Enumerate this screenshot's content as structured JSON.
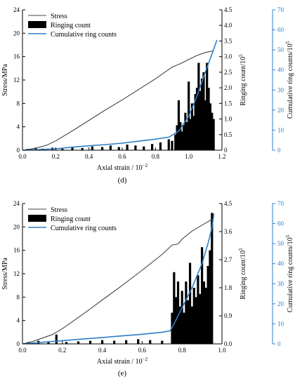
{
  "chart_data": [
    {
      "type": "line",
      "panel_label": "(d)",
      "xlabel": "Axial strain / 10",
      "xlabel_exp": "−2",
      "xlim": [
        0.0,
        1.2
      ],
      "x_ticks": [
        "0.0",
        "0.2",
        "0.4",
        "0.6",
        "0.8",
        "1.0",
        "1.2"
      ],
      "left_axis": {
        "label": "Stress/MPa",
        "lim": [
          0,
          24
        ],
        "ticks": [
          "0",
          "4",
          "8",
          "12",
          "16",
          "20",
          "24"
        ]
      },
      "right_axis_1": {
        "label": "Ringing count/10",
        "label_exp": "5",
        "lim": [
          0,
          4.5
        ],
        "ticks": [
          "0",
          "0.5",
          "1.0",
          "1.5",
          "2.0",
          "2.5",
          "3.0",
          "3.5",
          "4.0",
          "4.5"
        ]
      },
      "right_axis_2": {
        "label": "Cumulative ring counts/10",
        "label_exp": "5",
        "lim": [
          0,
          70
        ],
        "ticks": [
          "0",
          "10",
          "20",
          "30",
          "40",
          "50",
          "60",
          "70"
        ],
        "color": "#2e7ec7"
      },
      "legend": {
        "position": "top-left",
        "entries": [
          "Stress",
          "Ringing count",
          "Cumulative ring counts"
        ]
      },
      "series": [
        {
          "name": "Stress",
          "axis": "left",
          "color": "#444444",
          "x": [
            0.0,
            0.05,
            0.1,
            0.15,
            0.2,
            0.3,
            0.4,
            0.5,
            0.6,
            0.7,
            0.8,
            0.9,
            0.95,
            1.0,
            1.05,
            1.1,
            1.15
          ],
          "y": [
            0.0,
            0.2,
            0.5,
            0.9,
            1.6,
            3.3,
            5.1,
            6.9,
            8.6,
            10.4,
            12.2,
            14.2,
            14.8,
            15.5,
            16.2,
            16.7,
            17.0
          ]
        },
        {
          "name": "Cumulative ring counts",
          "axis": "right_2",
          "color": "#2e7ec7",
          "x": [
            0.0,
            0.1,
            0.2,
            0.3,
            0.4,
            0.5,
            0.6,
            0.7,
            0.8,
            0.88,
            0.94,
            1.0,
            1.05,
            1.1,
            1.14,
            1.17
          ],
          "y": [
            0.0,
            0.3,
            0.7,
            1.5,
            2.2,
            2.8,
            3.5,
            4.5,
            5.5,
            6.5,
            9.5,
            17.0,
            27.0,
            39.0,
            48.0,
            55.0
          ]
        },
        {
          "name": "Ringing count",
          "axis": "right_1",
          "type": "bar",
          "color": "#000000",
          "x": [
            0.03,
            0.08,
            0.12,
            0.18,
            0.24,
            0.3,
            0.36,
            0.42,
            0.48,
            0.53,
            0.58,
            0.63,
            0.68,
            0.73,
            0.78,
            0.83,
            0.88,
            0.9,
            0.92,
            0.93,
            0.94,
            0.95,
            0.96,
            0.97,
            0.98,
            0.99,
            1.0,
            1.01,
            1.02,
            1.03,
            1.04,
            1.05,
            1.06,
            1.07,
            1.08,
            1.09,
            1.1,
            1.11,
            1.12,
            1.13,
            1.14,
            1.15
          ],
          "y": [
            0.04,
            0.06,
            0.05,
            0.08,
            0.05,
            0.1,
            0.07,
            0.12,
            0.1,
            0.15,
            0.1,
            0.18,
            0.15,
            0.12,
            0.2,
            0.25,
            0.35,
            0.3,
            0.5,
            0.8,
            1.6,
            0.9,
            0.6,
            0.8,
            1.2,
            0.9,
            2.2,
            1.0,
            1.5,
            1.1,
            1.8,
            2.0,
            2.8,
            1.9,
            2.3,
            2.5,
            1.6,
            2.8,
            2.0,
            1.5,
            1.2,
            1.0
          ]
        }
      ]
    },
    {
      "type": "line",
      "panel_label": "(e)",
      "xlabel": "Axial strain / 10",
      "xlabel_exp": "−2",
      "xlim": [
        0.0,
        1.0
      ],
      "x_ticks": [
        "0.0",
        "0.2",
        "0.4",
        "0.6",
        "0.8",
        "1.0"
      ],
      "left_axis": {
        "label": "Stress/MPa",
        "lim": [
          0,
          24
        ],
        "ticks": [
          "0",
          "4",
          "8",
          "12",
          "16",
          "20",
          "24"
        ]
      },
      "right_axis_1": {
        "label": "Ringing count/10",
        "label_exp": "5",
        "lim": [
          0,
          4.5
        ],
        "ticks": [
          "0.0",
          "0.9",
          "1.8",
          "2.7",
          "3.6",
          "4.5"
        ]
      },
      "right_axis_2": {
        "label": "Cumulative ring counts/10",
        "label_exp": "5",
        "lim": [
          0,
          70
        ],
        "ticks": [
          "0",
          "10",
          "20",
          "30",
          "40",
          "50",
          "60",
          "70"
        ],
        "color": "#2e7ec7"
      },
      "legend": {
        "position": "top-left",
        "entries": [
          "Stress",
          "Ringing count",
          "Cumulative ring counts"
        ]
      },
      "series": [
        {
          "name": "Stress",
          "axis": "left",
          "color": "#444444",
          "x": [
            0.0,
            0.05,
            0.1,
            0.15,
            0.2,
            0.3,
            0.4,
            0.5,
            0.6,
            0.7,
            0.75,
            0.78,
            0.8,
            0.85,
            0.9,
            0.95
          ],
          "y": [
            0.0,
            0.4,
            1.0,
            1.6,
            2.6,
            5.0,
            7.5,
            10.0,
            12.6,
            15.3,
            16.9,
            17.1,
            17.9,
            19.3,
            20.3,
            21.3
          ]
        },
        {
          "name": "Cumulative ring counts",
          "axis": "right_2",
          "color": "#2e7ec7",
          "x": [
            0.0,
            0.1,
            0.2,
            0.3,
            0.4,
            0.5,
            0.6,
            0.7,
            0.74,
            0.76,
            0.8,
            0.85,
            0.9,
            0.93,
            0.95,
            0.96
          ],
          "y": [
            0.0,
            0.8,
            1.6,
            2.4,
            3.2,
            4.0,
            4.8,
            5.8,
            6.5,
            10.0,
            18.0,
            28.0,
            40.0,
            50.0,
            58.0,
            65.0
          ]
        },
        {
          "name": "Ringing count",
          "axis": "right_1",
          "type": "bar",
          "color": "#000000",
          "x": [
            0.03,
            0.08,
            0.13,
            0.17,
            0.22,
            0.28,
            0.34,
            0.4,
            0.46,
            0.52,
            0.58,
            0.64,
            0.7,
            0.75,
            0.76,
            0.77,
            0.78,
            0.79,
            0.8,
            0.81,
            0.82,
            0.83,
            0.84,
            0.85,
            0.86,
            0.87,
            0.88,
            0.89,
            0.9,
            0.91,
            0.92,
            0.93,
            0.94,
            0.95
          ],
          "y": [
            0.06,
            0.1,
            0.08,
            0.3,
            0.06,
            0.08,
            0.1,
            0.12,
            0.1,
            0.12,
            0.15,
            0.12,
            0.1,
            1.0,
            2.3,
            1.5,
            2.0,
            1.2,
            1.7,
            1.0,
            2.0,
            1.4,
            2.6,
            1.2,
            1.8,
            1.5,
            2.2,
            1.6,
            3.1,
            2.0,
            1.8,
            2.5,
            3.0,
            4.2
          ]
        }
      ]
    }
  ]
}
